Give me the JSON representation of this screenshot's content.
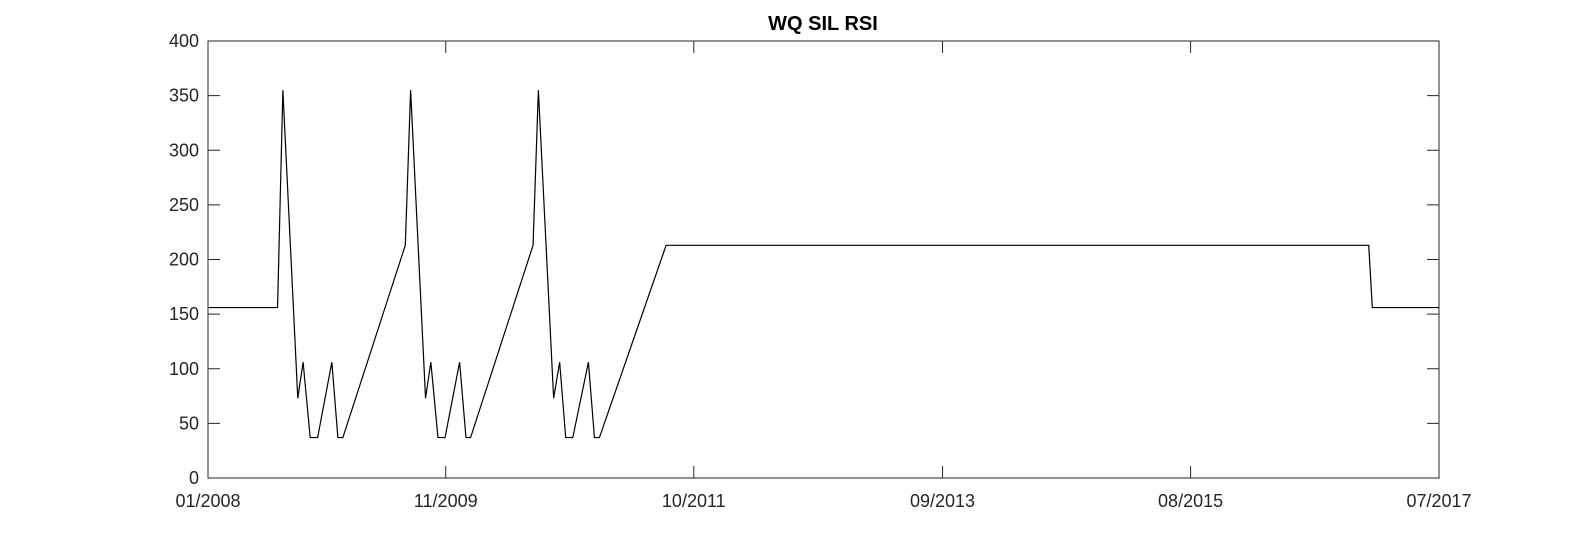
{
  "chart_data": {
    "type": "line",
    "title": "WQ SIL RSI",
    "xlabel": "",
    "ylabel": "",
    "x_ticks": [
      "01/2008",
      "11/2009",
      "10/2011",
      "09/2013",
      "08/2015",
      "07/2017"
    ],
    "y_ticks": [
      "0",
      "50",
      "100",
      "150",
      "200",
      "250",
      "300",
      "350",
      "400"
    ],
    "xlim": [
      "2008-01-01",
      "2017-07-01"
    ],
    "ylim": [
      0,
      400
    ],
    "grid": false,
    "line_color": "#000000",
    "series": [
      {
        "name": "",
        "x": [
          "2008-01-01",
          "2008-07-15",
          "2008-07-30",
          "2008-09-10",
          "2008-09-25",
          "2008-10-15",
          "2008-11-05",
          "2008-12-15",
          "2009-01-01",
          "2009-01-15",
          "2009-07-10",
          "2009-07-25",
          "2009-09-05",
          "2009-09-20",
          "2009-10-10",
          "2009-10-30",
          "2009-12-10",
          "2009-12-28",
          "2010-01-10",
          "2010-07-05",
          "2010-07-20",
          "2010-09-01",
          "2010-09-18",
          "2010-10-05",
          "2010-10-25",
          "2010-12-08",
          "2010-12-25",
          "2011-01-08",
          "2011-07-15",
          "2016-12-15",
          "2016-12-25",
          "2017-07-01"
        ],
        "y": [
          156,
          156,
          355,
          73,
          106,
          37,
          37,
          106,
          37,
          37,
          213,
          355,
          73,
          106,
          37,
          37,
          106,
          37,
          37,
          213,
          355,
          73,
          106,
          37,
          37,
          106,
          37,
          37,
          213,
          213,
          156,
          156
        ]
      }
    ]
  }
}
